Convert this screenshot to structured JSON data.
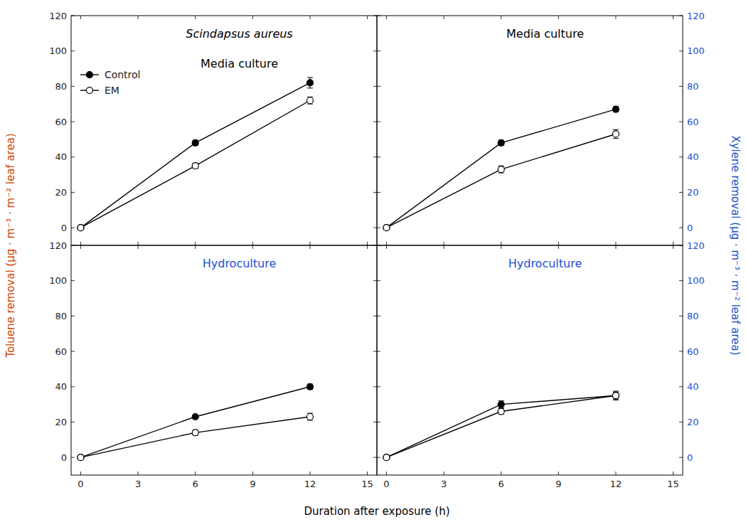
{
  "chart_data": [
    {
      "type": "line",
      "title": "Scindapsus aureus",
      "subtitle": "Media culture",
      "color": "black",
      "ylabel": "Toluene removal (μg · m⁻³ · m⁻² leaf area)",
      "x": [
        0,
        6,
        12
      ],
      "series": [
        {
          "name": "Control",
          "color": "black",
          "marker": "circle",
          "values": [
            0,
            48,
            82
          ],
          "errors": [
            0.5,
            1.5,
            3.0
          ]
        },
        {
          "name": "EM",
          "color": "black",
          "marker": "open-circle",
          "values": [
            0,
            35,
            72
          ],
          "errors": [
            0.5,
            1.5,
            2.0
          ]
        }
      ],
      "xlim": [
        -0.5,
        15.5
      ],
      "xticks": [
        0,
        3,
        6,
        9,
        12,
        15
      ],
      "ylim": [
        -10,
        120
      ],
      "yticks": [
        0,
        20,
        40,
        60,
        80,
        100,
        120
      ],
      "legend": "upper left",
      "tick_labels": "y"
    },
    {
      "type": "line",
      "title": "Media culture",
      "color": "black",
      "ylabel": "Xylene removal (μg · m⁻³ · m⁻² leaf area)",
      "x": [
        0,
        6,
        12
      ],
      "series": [
        {
          "name": "Control",
          "color": "black",
          "marker": "circle",
          "values": [
            0,
            48,
            67
          ],
          "errors": [
            0.3,
            1.5,
            1.5
          ]
        },
        {
          "name": "EM",
          "color": "black",
          "marker": "open-circle",
          "values": [
            0,
            33,
            53
          ],
          "errors": [
            0.5,
            2.0,
            2.5
          ]
        }
      ],
      "xlim": [
        -0.5,
        15.5
      ],
      "xticks": [
        0,
        3,
        6,
        9,
        12,
        15
      ],
      "ylim": [
        -10,
        120
      ],
      "yticks": [
        0,
        20,
        40,
        60,
        80,
        100,
        120
      ],
      "tick_labels": "y"
    },
    {
      "type": "line",
      "title": "Hydroculture",
      "color": "#1a4fcc",
      "xlabel": "Duration after exposure (h)",
      "x": [
        0,
        6,
        12
      ],
      "series": [
        {
          "name": "Control",
          "color": "black",
          "marker": "circle",
          "values": [
            0,
            23,
            40
          ],
          "errors": [
            0.5,
            1.0,
            1.5
          ]
        },
        {
          "name": "EM",
          "color": "black",
          "marker": "open-circle",
          "values": [
            0,
            14,
            23
          ],
          "errors": [
            0.5,
            1.5,
            2.0
          ]
        }
      ],
      "xlim": [
        -0.5,
        15.5
      ],
      "xticks": [
        0,
        3,
        6,
        9,
        12,
        15
      ],
      "ylim": [
        -10,
        120
      ],
      "yticks": [
        0,
        20,
        40,
        60,
        80,
        100,
        120
      ]
    },
    {
      "type": "line",
      "title": "Hydroculture",
      "color": "#1a4fcc",
      "x": [
        0,
        6,
        12
      ],
      "series": [
        {
          "name": "Control",
          "color": "black",
          "marker": "circle",
          "values": [
            0,
            30,
            35
          ],
          "errors": [
            0.3,
            2.0,
            2.0
          ]
        },
        {
          "name": "EM",
          "color": "black",
          "marker": "open-circle",
          "values": [
            0,
            26,
            35
          ],
          "errors": [
            0.5,
            1.5,
            2.5
          ]
        }
      ],
      "xlim": [
        -0.5,
        15.5
      ],
      "xticks": [
        0,
        3,
        6,
        9,
        12,
        15
      ],
      "ylim": [
        -10,
        120
      ],
      "yticks": [
        0,
        20,
        40,
        60,
        80,
        100,
        120
      ]
    }
  ]
}
